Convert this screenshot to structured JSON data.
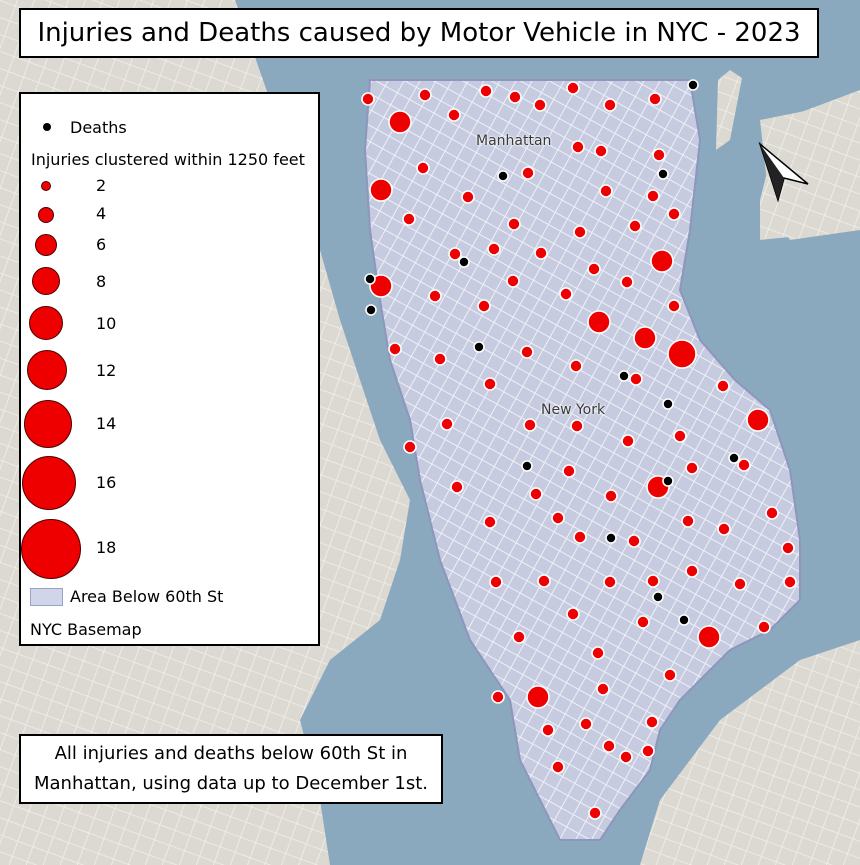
{
  "title": "Injuries and Deaths caused by Motor Vehicle in NYC - 2023",
  "legend": {
    "deaths_label": "Deaths",
    "injuries_heading": "Injuries clustered within 1250 feet",
    "size_classes": [
      "2",
      "4",
      "6",
      "8",
      "10",
      "12",
      "14",
      "16",
      "18"
    ],
    "area_label": "Area Below 60th St",
    "basemap_label": "NYC Basemap"
  },
  "note": {
    "line1": "All injuries and deaths below 60th St in",
    "line2": "Manhattan, using data up to December 1st."
  },
  "place_labels": {
    "manhattan": "Manhattan",
    "new_york": "New York"
  },
  "colors": {
    "water": "#8aa8be",
    "land": "#dcd9d2",
    "study_area": "#c9cee3",
    "injury_marker": "#ee0000",
    "death_marker": "#000000"
  },
  "icons": [
    "north-arrow-icon"
  ]
}
